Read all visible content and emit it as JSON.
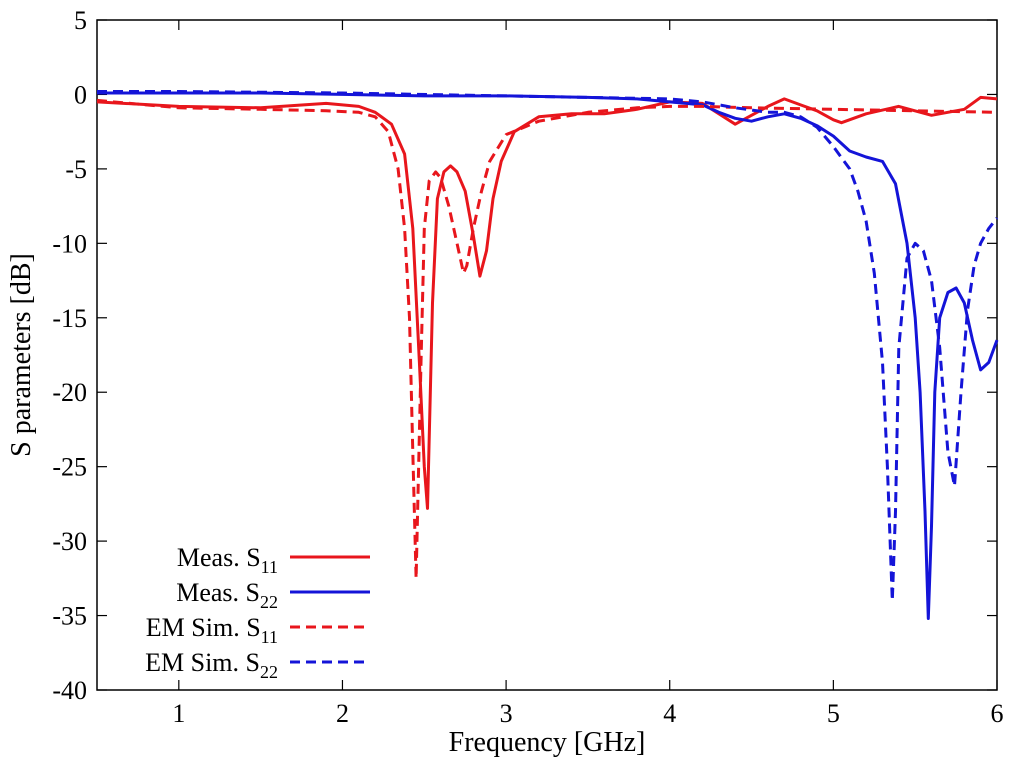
{
  "chart_data": {
    "type": "line",
    "xlabel": "Frequency [GHz]",
    "ylabel": "S parameters [dB]",
    "xlim": [
      0.5,
      6
    ],
    "ylim": [
      -40,
      5
    ],
    "x_ticks": [
      "1",
      "2",
      "3",
      "4",
      "5",
      "6"
    ],
    "y_ticks": [
      "5",
      "0",
      "-5",
      "-10",
      "-15",
      "-20",
      "-25",
      "-30",
      "-35",
      "-40"
    ],
    "grid": false,
    "legend_position": "bottom-left",
    "colors": {
      "red": "#e8161c",
      "blue": "#1414d8"
    },
    "series": [
      {
        "legend_main": "Meas. S",
        "legend_sub": "11",
        "color": "red",
        "dash": "solid",
        "x": [
          0.5,
          1.0,
          1.5,
          1.9,
          2.1,
          2.2,
          2.3,
          2.38,
          2.43,
          2.47,
          2.5,
          2.52,
          2.55,
          2.58,
          2.62,
          2.66,
          2.7,
          2.75,
          2.8,
          2.84,
          2.88,
          2.92,
          2.97,
          3.05,
          3.2,
          3.4,
          3.6,
          3.8,
          4.0,
          4.2,
          4.4,
          4.5,
          4.6,
          4.7,
          4.8,
          4.9,
          5.0,
          5.05,
          5.2,
          5.4,
          5.6,
          5.8,
          5.9,
          6.0
        ],
        "y": [
          -0.5,
          -0.8,
          -0.9,
          -0.6,
          -0.8,
          -1.2,
          -2.0,
          -4.0,
          -9.0,
          -18.0,
          -25.0,
          -27.8,
          -14.0,
          -7.0,
          -5.2,
          -4.8,
          -5.2,
          -6.5,
          -9.5,
          -12.2,
          -10.5,
          -7.0,
          -4.5,
          -2.5,
          -1.5,
          -1.3,
          -1.3,
          -1.0,
          -0.5,
          -0.6,
          -2.0,
          -1.4,
          -0.8,
          -0.3,
          -0.7,
          -1.1,
          -1.7,
          -1.9,
          -1.3,
          -0.8,
          -1.4,
          -1.0,
          -0.2,
          -0.3
        ]
      },
      {
        "legend_main": "Meas. S",
        "legend_sub": "22",
        "color": "blue",
        "dash": "solid",
        "x": [
          0.5,
          1.0,
          1.5,
          2.0,
          2.5,
          3.0,
          3.5,
          3.8,
          4.0,
          4.2,
          4.3,
          4.4,
          4.5,
          4.6,
          4.7,
          4.8,
          4.9,
          5.0,
          5.1,
          5.2,
          5.3,
          5.38,
          5.45,
          5.5,
          5.53,
          5.56,
          5.58,
          5.6,
          5.62,
          5.65,
          5.7,
          5.75,
          5.8,
          5.85,
          5.9,
          5.95,
          6.0
        ],
        "y": [
          0.1,
          0.1,
          0.1,
          0.0,
          -0.1,
          -0.1,
          -0.2,
          -0.3,
          -0.5,
          -0.7,
          -1.2,
          -1.6,
          -1.8,
          -1.5,
          -1.3,
          -1.6,
          -2.1,
          -2.8,
          -3.8,
          -4.2,
          -4.5,
          -6.0,
          -10.0,
          -15.0,
          -20.0,
          -28.0,
          -35.2,
          -29.0,
          -20.0,
          -15.0,
          -13.3,
          -13.0,
          -14.0,
          -16.5,
          -18.5,
          -18.0,
          -16.5
        ]
      },
      {
        "legend_main": "EM Sim. S",
        "legend_sub": "11",
        "color": "red",
        "dash": "dashed",
        "x": [
          0.5,
          1.0,
          1.5,
          1.9,
          2.1,
          2.2,
          2.28,
          2.34,
          2.38,
          2.41,
          2.43,
          2.45,
          2.48,
          2.5,
          2.53,
          2.57,
          2.6,
          2.65,
          2.7,
          2.74,
          2.76,
          2.8,
          2.85,
          2.9,
          3.0,
          3.2,
          3.5,
          3.8,
          4.0,
          4.2,
          4.5,
          5.0,
          5.5,
          6.0
        ],
        "y": [
          -0.4,
          -0.9,
          -1.0,
          -1.1,
          -1.2,
          -1.5,
          -2.5,
          -5.0,
          -9.0,
          -15.0,
          -24.0,
          -32.5,
          -18.0,
          -9.0,
          -5.8,
          -5.2,
          -5.6,
          -7.5,
          -10.0,
          -12.0,
          -11.5,
          -9.0,
          -6.5,
          -4.5,
          -2.7,
          -1.8,
          -1.2,
          -0.9,
          -0.8,
          -0.8,
          -0.9,
          -1.0,
          -1.1,
          -1.2
        ]
      },
      {
        "legend_main": "EM Sim. S",
        "legend_sub": "22",
        "color": "blue",
        "dash": "dashed",
        "x": [
          0.5,
          1.0,
          2.0,
          3.0,
          3.5,
          4.0,
          4.2,
          4.4,
          4.6,
          4.7,
          4.8,
          4.9,
          5.0,
          5.1,
          5.15,
          5.2,
          5.25,
          5.3,
          5.33,
          5.36,
          5.38,
          5.4,
          5.45,
          5.5,
          5.55,
          5.6,
          5.65,
          5.7,
          5.74,
          5.78,
          5.82,
          5.86,
          5.9,
          5.95,
          6.0
        ],
        "y": [
          0.2,
          0.2,
          0.1,
          -0.1,
          -0.2,
          -0.3,
          -0.5,
          -0.9,
          -1.2,
          -1.2,
          -1.5,
          -2.2,
          -3.5,
          -5.0,
          -6.5,
          -8.5,
          -12.0,
          -18.0,
          -25.0,
          -34.0,
          -28.0,
          -17.0,
          -11.0,
          -10.0,
          -10.5,
          -12.5,
          -17.0,
          -24.0,
          -26.3,
          -20.0,
          -14.5,
          -11.5,
          -10.0,
          -9.0,
          -8.3
        ]
      }
    ]
  }
}
